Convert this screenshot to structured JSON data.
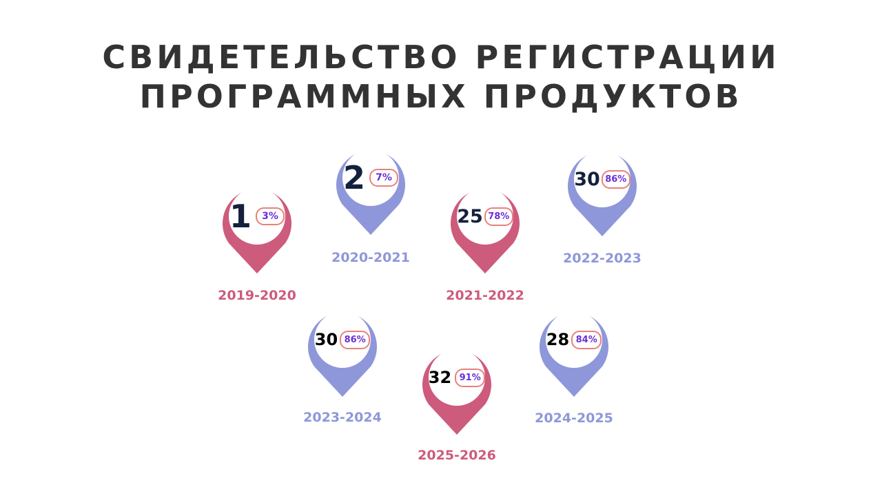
{
  "title": {
    "line1": "СВИДЕТЕЛЬСТВО РЕГИСТРАЦИИ",
    "line2": "ПРОГРАММНЫХ ПРОДУКТОВ"
  },
  "colors": {
    "pink": "#cd5b7c",
    "blue": "#8e97d9",
    "count_dark": "#14213d",
    "count_black": "#000000",
    "pct_text": "#6a2fd6",
    "pct_border": "#e8807a",
    "title": "#333333"
  },
  "markers": [
    {
      "year": "2019-2020",
      "count": "1",
      "percent": "3%",
      "color": "pink"
    },
    {
      "year": "2020-2021",
      "count": "2",
      "percent": "7%",
      "color": "blue"
    },
    {
      "year": "2021-2022",
      "count": "25",
      "percent": "78%",
      "color": "pink"
    },
    {
      "year": "2022-2023",
      "count": "30",
      "percent": "86%",
      "color": "blue"
    },
    {
      "year": "2023-2024",
      "count": "30",
      "percent": "86%",
      "color": "blue"
    },
    {
      "year": "2025-2026",
      "count": "32",
      "percent": "91%",
      "color": "pink"
    },
    {
      "year": "2024-2025",
      "count": "28",
      "percent": "84%",
      "color": "blue"
    }
  ]
}
